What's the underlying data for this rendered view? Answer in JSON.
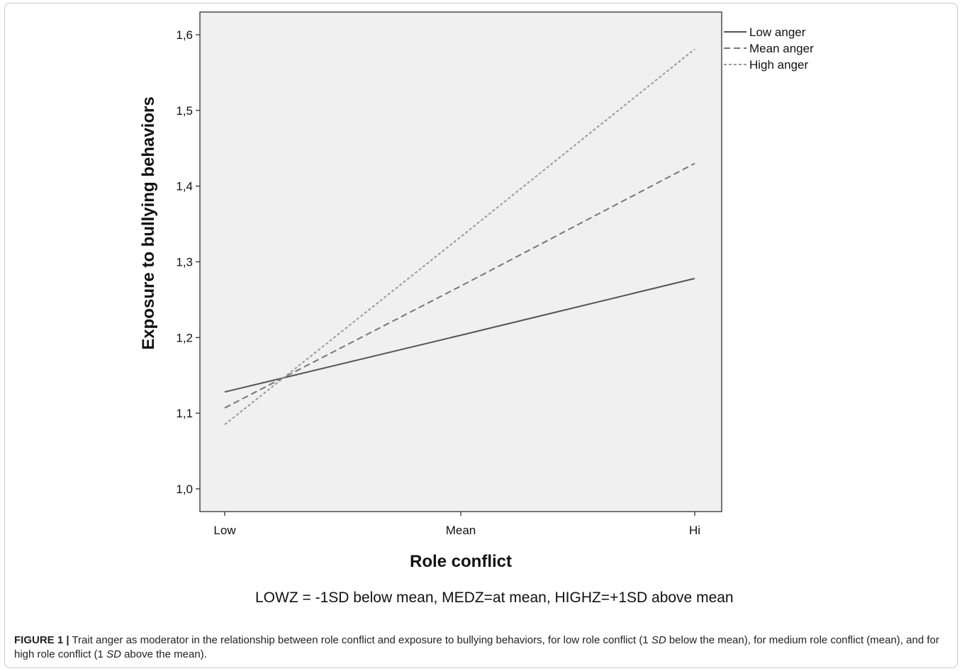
{
  "chart_data": {
    "type": "line",
    "categories": [
      "Low",
      "Mean",
      "Hi"
    ],
    "xlabel": "Role conflict",
    "ylabel": "Exposure to bullying behaviors",
    "ylim": [
      0.97,
      1.63
    ],
    "yticks": [
      "1,0",
      "1,1",
      "1,2",
      "1,3",
      "1,4",
      "1,5",
      "1,6"
    ],
    "ytick_values": [
      1.0,
      1.1,
      1.2,
      1.3,
      1.4,
      1.5,
      1.6
    ],
    "grid": false,
    "legend_position": "top-right",
    "series": [
      {
        "name": "Low anger",
        "values": [
          1.128,
          1.203,
          1.278
        ],
        "style": "solid",
        "color": "#555555"
      },
      {
        "name": "Mean anger",
        "values": [
          1.107,
          1.268,
          1.43
        ],
        "style": "dashed",
        "color": "#777777"
      },
      {
        "name": "High anger",
        "values": [
          1.085,
          1.333,
          1.581
        ],
        "style": "dotted",
        "color": "#999999"
      }
    ]
  },
  "note": "LOWZ = -1SD below mean, MEDZ=at mean, HIGHZ=+1SD above mean",
  "caption": {
    "label": "FIGURE 1 |",
    "part1": " Trait anger as moderator in the relationship between role conflict and exposure to bullying behaviors, for low role conflict (1 ",
    "sd1": "SD",
    "part2": " below the mean), for medium role conflict (mean), and for high role conflict (1 ",
    "sd2": "SD",
    "part3": " above the mean)."
  }
}
